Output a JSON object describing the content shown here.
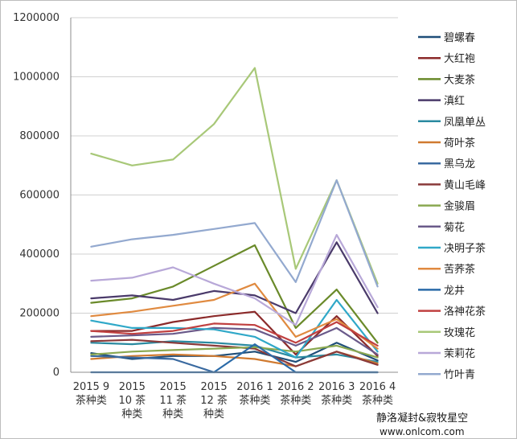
{
  "chart_data": {
    "type": "line",
    "title": "",
    "xlabel": "",
    "ylabel": "",
    "ylim": [
      0,
      1200000
    ],
    "yticks": [
      "0",
      "200000",
      "400000",
      "600000",
      "800000",
      "1000000",
      "1200000"
    ],
    "categories": [
      [
        "2015 9",
        "茶种类"
      ],
      [
        "2015",
        "10 茶",
        "种类"
      ],
      [
        "2015",
        "11 茶",
        "种类"
      ],
      [
        "2015",
        "12 茶",
        "种类"
      ],
      [
        "2016 1",
        "茶种类"
      ],
      [
        "2016 2",
        "茶种类"
      ],
      [
        "2016 3",
        "茶种类"
      ],
      [
        "2016 4",
        "茶种类"
      ]
    ],
    "grid": true,
    "legend_position": "right",
    "series": [
      {
        "name": "碧螺春",
        "color": "#1f4e79",
        "values": [
          65000,
          45000,
          55000,
          55000,
          70000,
          35000,
          100000,
          40000
        ]
      },
      {
        "name": "大红袍",
        "color": "#8b2a2a",
        "values": [
          140000,
          140000,
          170000,
          190000,
          205000,
          60000,
          190000,
          55000
        ]
      },
      {
        "name": "大麦茶",
        "color": "#6a8a2a",
        "values": [
          235000,
          250000,
          290000,
          360000,
          430000,
          150000,
          280000,
          100000
        ]
      },
      {
        "name": "滇红",
        "color": "#4a3a6a",
        "values": [
          250000,
          260000,
          245000,
          275000,
          260000,
          200000,
          440000,
          200000
        ]
      },
      {
        "name": "凤凰单丛",
        "color": "#2a8aa0",
        "values": [
          100000,
          95000,
          105000,
          100000,
          90000,
          50000,
          60000,
          35000
        ]
      },
      {
        "name": "荷叶茶",
        "color": "#d07a30",
        "values": [
          45000,
          55000,
          60000,
          55000,
          45000,
          20000,
          70000,
          30000
        ]
      },
      {
        "name": "黑乌龙",
        "color": "#3a6aa0",
        "values": [
          55000,
          50000,
          45000,
          0,
          0,
          0,
          0,
          0
        ]
      },
      {
        "name": "黄山毛峰",
        "color": "#8a3a3a",
        "values": [
          105000,
          110000,
          100000,
          90000,
          80000,
          20000,
          70000,
          25000
        ]
      },
      {
        "name": "金骏眉",
        "color": "#8aa850",
        "values": [
          60000,
          70000,
          75000,
          80000,
          85000,
          70000,
          90000,
          50000
        ]
      },
      {
        "name": "菊花",
        "color": "#6a5a8a",
        "values": [
          120000,
          125000,
          130000,
          150000,
          145000,
          90000,
          150000,
          60000
        ]
      },
      {
        "name": "决明子茶",
        "color": "#30a8c8",
        "values": [
          175000,
          150000,
          150000,
          145000,
          120000,
          50000,
          245000,
          70000
        ]
      },
      {
        "name": "苦荞茶",
        "color": "#e08a40",
        "values": [
          190000,
          205000,
          225000,
          245000,
          300000,
          120000,
          180000,
          80000
        ]
      },
      {
        "name": "龙井",
        "color": "#2a6aa8",
        "values": [
          0,
          0,
          0,
          0,
          95000,
          0,
          0,
          0
        ]
      },
      {
        "name": "洛神花茶",
        "color": "#c04040",
        "values": [
          140000,
          130000,
          140000,
          165000,
          160000,
          100000,
          170000,
          90000
        ]
      },
      {
        "name": "玫瑰花",
        "color": "#a8c878",
        "values": [
          740000,
          700000,
          720000,
          840000,
          1030000,
          350000,
          650000,
          300000
        ]
      },
      {
        "name": "茉莉花",
        "color": "#b8a8d8",
        "values": [
          310000,
          320000,
          355000,
          300000,
          250000,
          160000,
          465000,
          220000
        ]
      },
      {
        "name": "竹叶青",
        "color": "#93a9cf",
        "values": [
          425000,
          450000,
          465000,
          485000,
          505000,
          305000,
          650000,
          290000
        ]
      }
    ]
  },
  "watermark": {
    "line1": "静洛凝封&寂牧星空",
    "line2": "www.onlcom.com"
  }
}
